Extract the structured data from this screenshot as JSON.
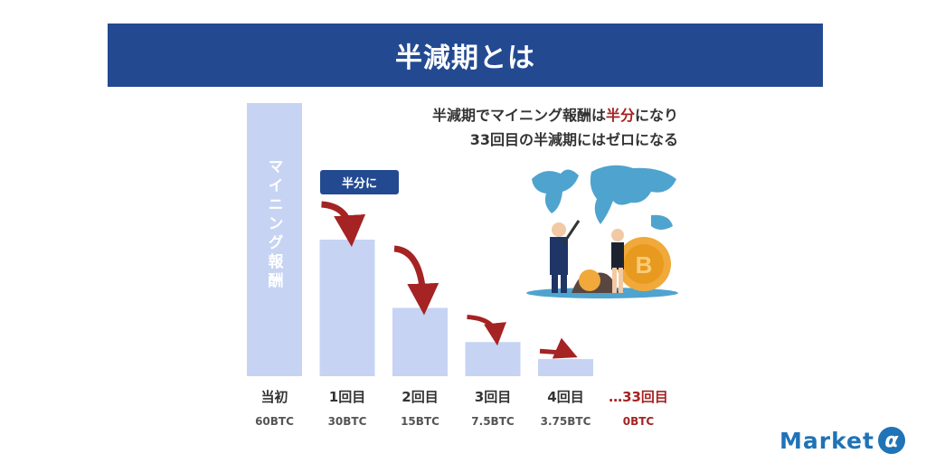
{
  "header": {
    "title": "半減期とは"
  },
  "subtitle": {
    "line1_before": "半減期でマイニング報酬は",
    "line1_accent": "半分",
    "line1_after": "になり",
    "line2": "33回目の半減期にはゼロになる"
  },
  "badge": {
    "label": "半分に"
  },
  "bar_label": "マイニング報酬",
  "logo": {
    "text": "Market",
    "mark": "α"
  },
  "colors": {
    "bar": "#c6d3f3",
    "arrow": "#a52323",
    "header": "#234a91",
    "accent": "#a52323"
  },
  "chart_data": {
    "type": "bar",
    "categories": [
      "当初",
      "1回目",
      "2回目",
      "3回目",
      "4回目",
      "…33回目"
    ],
    "value_labels": [
      "60BTC",
      "30BTC",
      "15BTC",
      "7.5BTC",
      "3.75BTC",
      "0BTC"
    ],
    "values": [
      60,
      30,
      15,
      7.5,
      3.75,
      0
    ],
    "title": "",
    "xlabel": "",
    "ylabel": "",
    "ylim": [
      0,
      60
    ],
    "highlight_last": true,
    "arrows_between_bars": true
  }
}
